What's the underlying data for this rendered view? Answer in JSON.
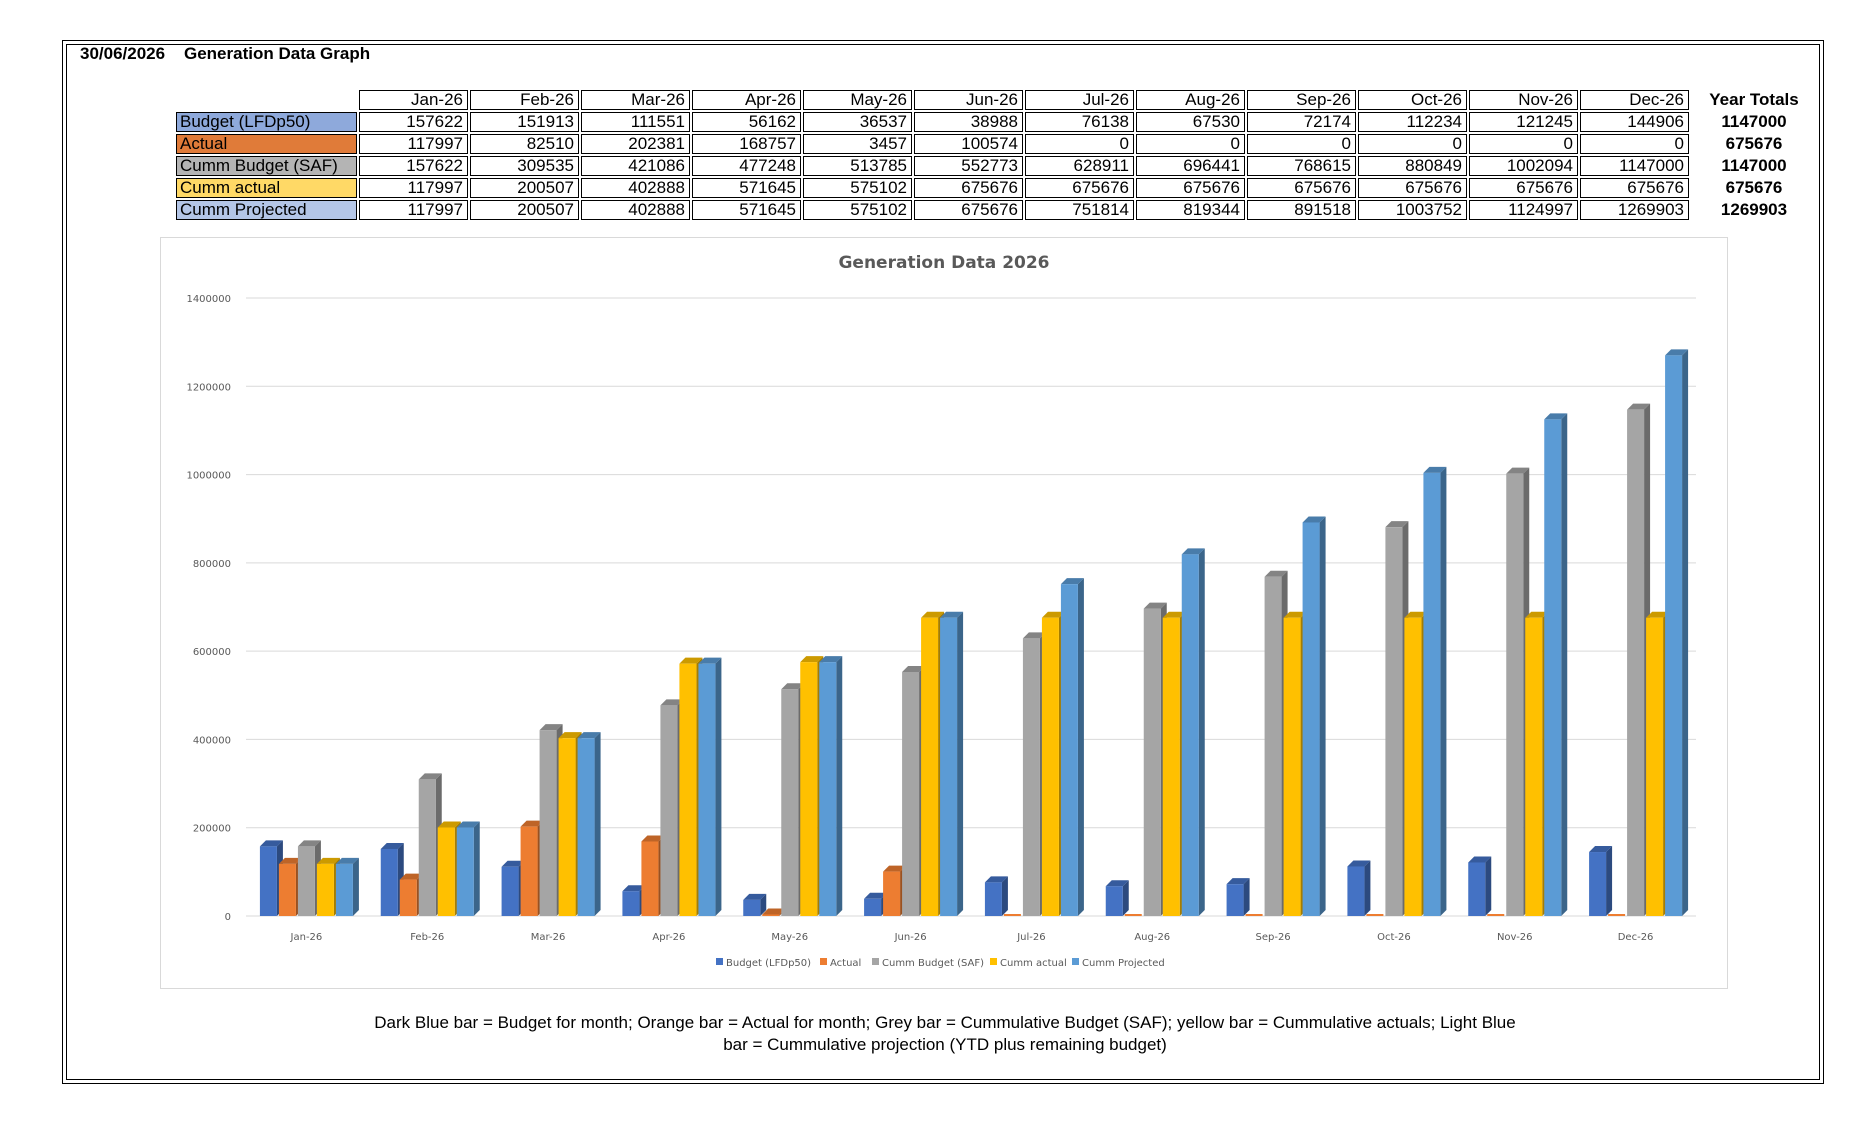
{
  "header": {
    "date": "30/06/2026",
    "title": "Generation Data Graph"
  },
  "table": {
    "months": [
      "Jan-26",
      "Feb-26",
      "Mar-26",
      "Apr-26",
      "May-26",
      "Jun-26",
      "Jul-26",
      "Aug-26",
      "Sep-26",
      "Oct-26",
      "Nov-26",
      "Dec-26"
    ],
    "year_totals_label": "Year Totals",
    "rows": [
      {
        "label": "Budget (LFDp50)",
        "color": "#8ea9db",
        "values": [
          "157622",
          "151913",
          "111551",
          "56162",
          "36537",
          "38988",
          "76138",
          "67530",
          "72174",
          "112234",
          "121245",
          "144906"
        ],
        "total": "1147000"
      },
      {
        "label": "Actual",
        "color": "#e07b39",
        "values": [
          "117997",
          "82510",
          "202381",
          "168757",
          "3457",
          "100574",
          "0",
          "0",
          "0",
          "0",
          "0",
          "0"
        ],
        "total": "675676"
      },
      {
        "label": "Cumm  Budget (SAF)",
        "color": "#b4b4b4",
        "values": [
          "157622",
          "309535",
          "421086",
          "477248",
          "513785",
          "552773",
          "628911",
          "696441",
          "768615",
          "880849",
          "1002094",
          "1147000"
        ],
        "total": "1147000"
      },
      {
        "label": "Cumm actual",
        "color": "#ffd966",
        "values": [
          "117997",
          "200507",
          "402888",
          "571645",
          "575102",
          "675676",
          "675676",
          "675676",
          "675676",
          "675676",
          "675676",
          "675676"
        ],
        "total": "675676"
      },
      {
        "label": "Cumm Projected",
        "color": "#b4c6e7",
        "values": [
          "117997",
          "200507",
          "402888",
          "571645",
          "575102",
          "675676",
          "751814",
          "819344",
          "891518",
          "1003752",
          "1124997",
          "1269903"
        ],
        "total": "1269903"
      }
    ]
  },
  "chart_data": {
    "type": "bar",
    "title": "Generation Data 2026",
    "categories": [
      "Jan-26",
      "Feb-26",
      "Mar-26",
      "Apr-26",
      "May-26",
      "Jun-26",
      "Jul-26",
      "Aug-26",
      "Sep-26",
      "Oct-26",
      "Nov-26",
      "Dec-26"
    ],
    "ylim": [
      0,
      1400000
    ],
    "yticks": [
      0,
      200000,
      400000,
      600000,
      800000,
      1000000,
      1200000,
      1400000
    ],
    "grid": true,
    "legend_position": "bottom",
    "series": [
      {
        "name": "Budget (LFDp50)",
        "color": "#4472c4",
        "values": [
          157622,
          151913,
          111551,
          56162,
          36537,
          38988,
          76138,
          67530,
          72174,
          112234,
          121245,
          144906
        ]
      },
      {
        "name": "Actual",
        "color": "#ed7d31",
        "values": [
          117997,
          82510,
          202381,
          168757,
          3457,
          100574,
          0,
          0,
          0,
          0,
          0,
          0
        ]
      },
      {
        "name": "Cumm  Budget (SAF)",
        "color": "#a5a5a5",
        "values": [
          157622,
          309535,
          421086,
          477248,
          513785,
          552773,
          628911,
          696441,
          768615,
          880849,
          1002094,
          1147000
        ]
      },
      {
        "name": "Cumm actual",
        "color": "#ffc000",
        "values": [
          117997,
          200507,
          402888,
          571645,
          575102,
          675676,
          675676,
          675676,
          675676,
          675676,
          675676,
          675676
        ]
      },
      {
        "name": "Cumm Projected",
        "color": "#5b9bd5",
        "values": [
          117997,
          200507,
          402888,
          571645,
          575102,
          675676,
          751814,
          819344,
          891518,
          1003752,
          1124997,
          1269903
        ]
      }
    ]
  },
  "caption": {
    "line1": "Dark Blue bar = Budget for month; Orange bar = Actual for month; Grey bar = Cummulative Budget (SAF); yellow bar = Cummulative actuals; Light Blue",
    "line2": "bar = Cummulative projection (YTD plus remaining budget)"
  }
}
